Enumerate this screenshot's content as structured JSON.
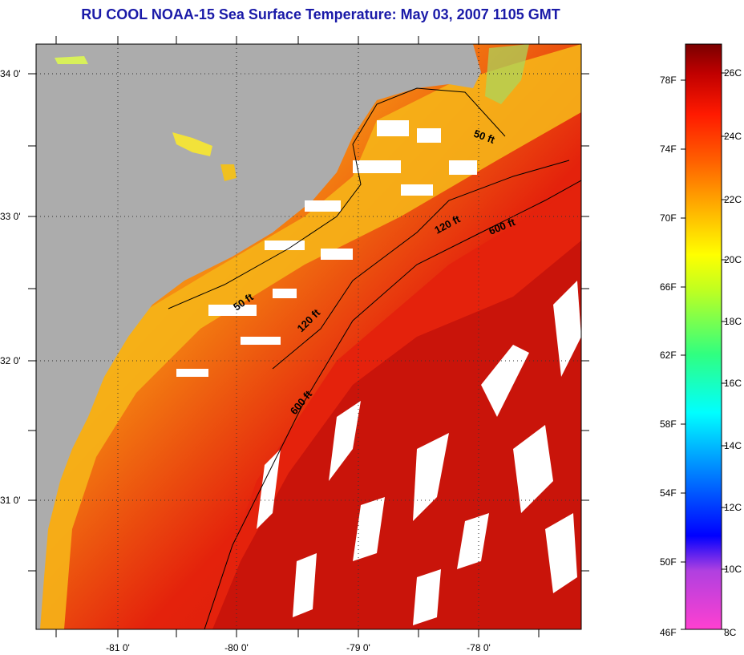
{
  "title": "RU COOL  NOAA-15  Sea Surface Temperature:  May 03, 2007 1105 GMT",
  "map": {
    "lon_labels": [
      "-81 0'",
      "-80 0'",
      "-79 0'",
      "-78 0'"
    ],
    "lat_labels": [
      "34 0'",
      "33 0'",
      "32 0'",
      "31 0'"
    ],
    "depth_labels": [
      "50 ft",
      "120 ft",
      "600 ft",
      "50 ft",
      "120 ft",
      "600 ft"
    ],
    "colors": {
      "land": "#acacac",
      "cloud": "#ffffff",
      "nearshore": "#f7c21a",
      "shelf": "#f58a12",
      "offshore": "#e4220c",
      "gulfstream": "#b80d0a"
    }
  },
  "colorbar": {
    "f_labels": [
      "78F",
      "74F",
      "70F",
      "66F",
      "62F",
      "58F",
      "54F",
      "50F",
      "46F"
    ],
    "c_labels": [
      "26C",
      "24C",
      "22C",
      "20C",
      "18C",
      "16C",
      "14C",
      "12C",
      "10C",
      "8C"
    ],
    "range_c": [
      8,
      27
    ]
  }
}
